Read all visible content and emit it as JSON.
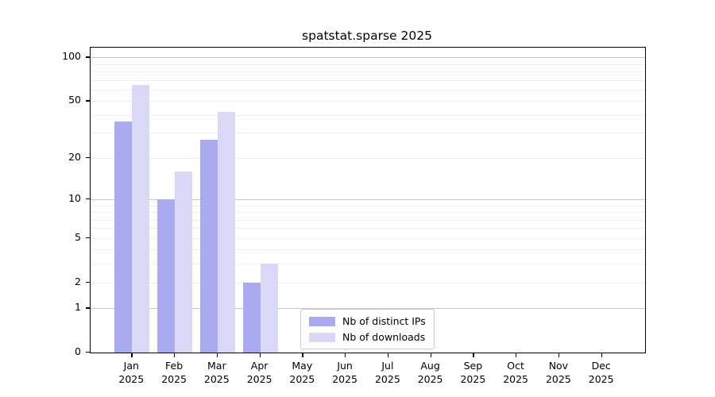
{
  "chart_data": {
    "type": "bar",
    "title": "spatstat.sparse 2025",
    "categories": [
      "Jan",
      "Feb",
      "Mar",
      "Apr",
      "May",
      "Jun",
      "Jul",
      "Aug",
      "Sep",
      "Oct",
      "Nov",
      "Dec"
    ],
    "year": "2025",
    "series": [
      {
        "name": "Nb of distinct IPs",
        "color": "#aaaaf0",
        "values": [
          36,
          10,
          27,
          2,
          0,
          0,
          0,
          0,
          0,
          0,
          0,
          0
        ]
      },
      {
        "name": "Nb of downloads",
        "color": "#d9d9f7",
        "values": [
          65,
          16,
          42,
          3,
          0,
          0,
          0,
          0,
          0,
          0,
          0,
          0
        ]
      }
    ],
    "y_axis": {
      "scale": "log10(value+1)",
      "tick_values": [
        100,
        50,
        20,
        10,
        5,
        2,
        1,
        0
      ],
      "tick_labels": [
        "100",
        "50",
        "20",
        "10",
        "5",
        "2",
        "1",
        "0"
      ],
      "major_gridlines": [
        1,
        10,
        100
      ],
      "minor_gridlines": [
        2,
        3,
        4,
        5,
        6,
        7,
        8,
        9,
        20,
        30,
        40,
        50,
        60,
        70,
        80,
        90
      ],
      "ylim": [
        0,
        113
      ]
    },
    "x_axis": {
      "label_line2": "2025"
    },
    "grid": "on",
    "legend_position": "lower-center"
  },
  "colors": {
    "background": "#ffffff",
    "axis": "#000000",
    "gridline_major": "#c6c6c6",
    "gridline_minor": "#eeeeee",
    "legend_border": "#cccccc"
  }
}
